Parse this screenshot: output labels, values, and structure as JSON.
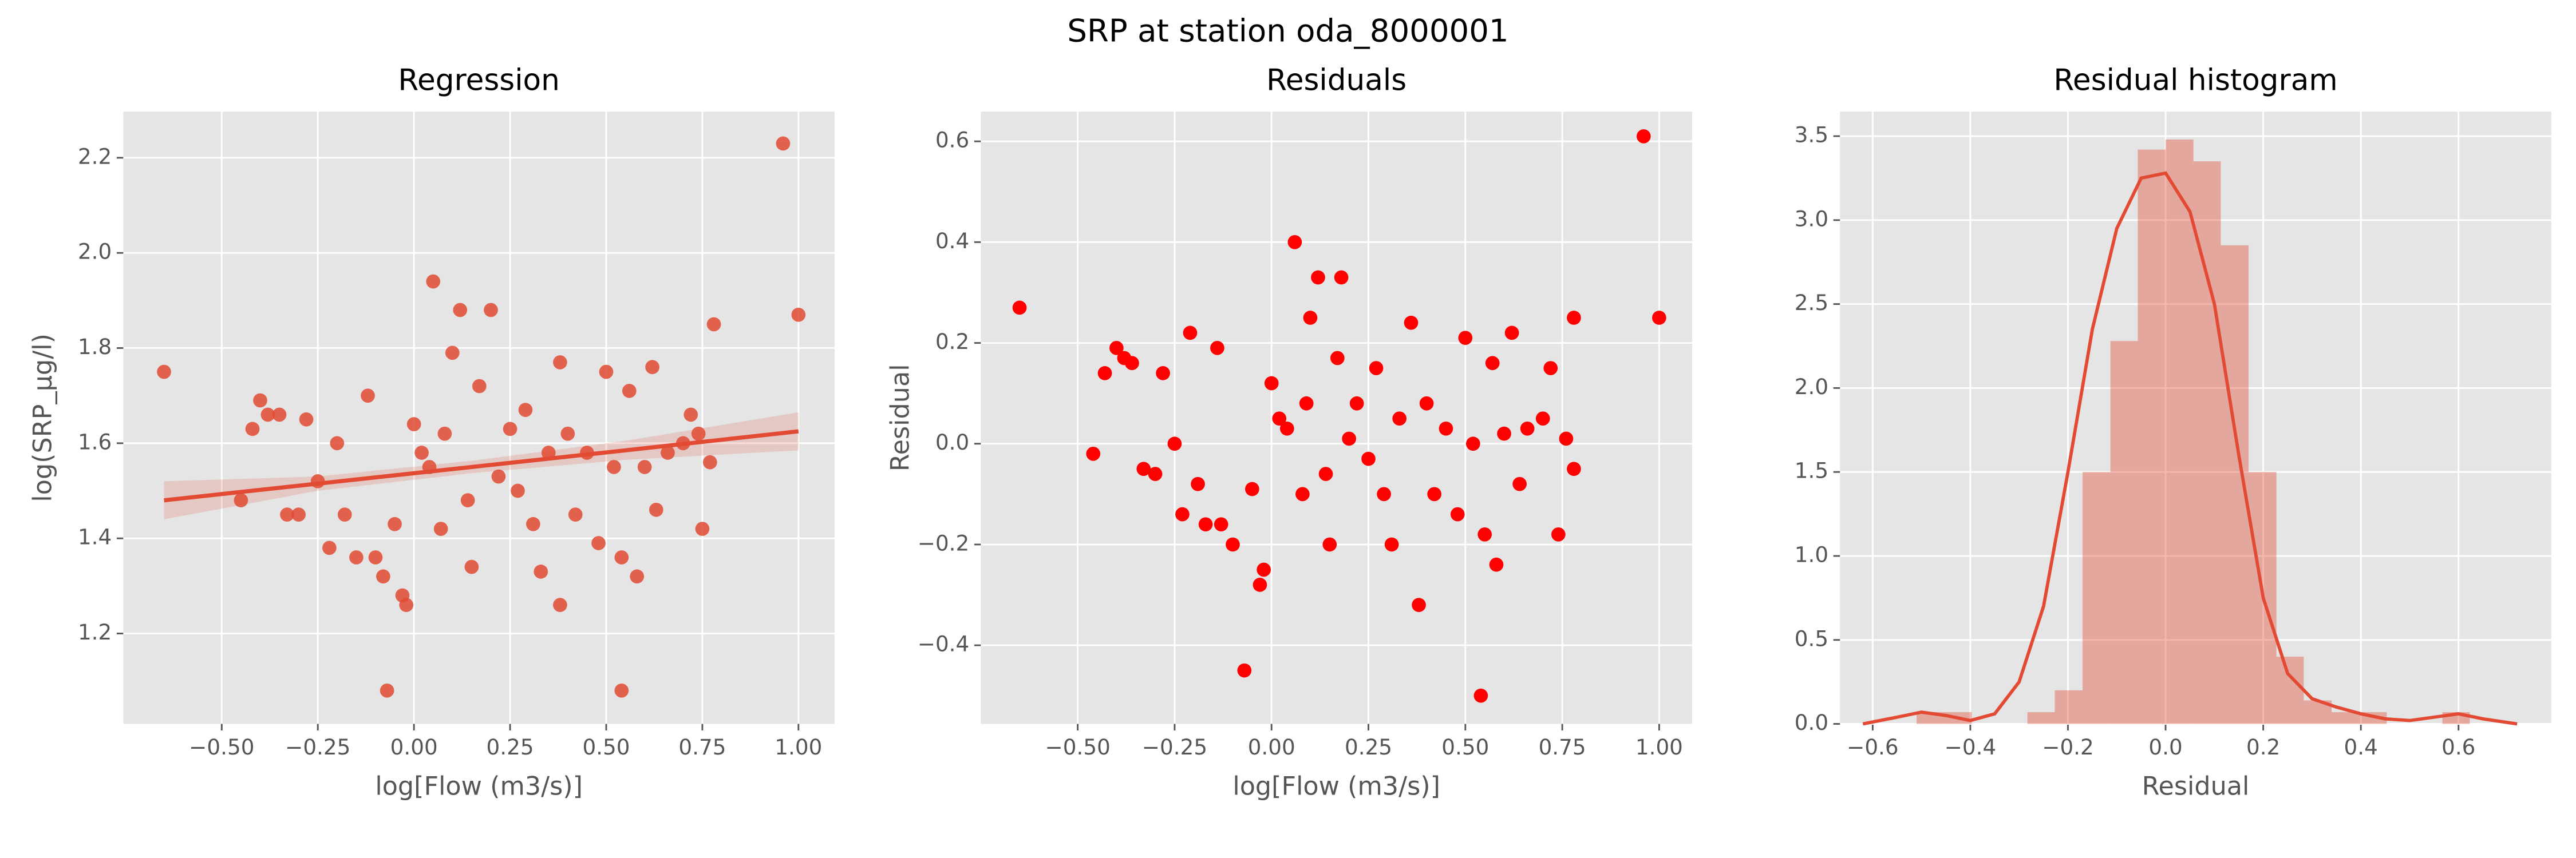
{
  "title": "SRP at station oda_8000001",
  "chart_data": [
    {
      "type": "scatter",
      "title": "Regression",
      "xlabel": "log[Flow (m3/s)]",
      "ylabel": "log(SRP_µg/l)",
      "xlim": [
        -0.756,
        1.094
      ],
      "ylim": [
        1.01,
        2.297
      ],
      "xticks": [
        {
          "value": -0.5,
          "label": "−0.50"
        },
        {
          "value": -0.25,
          "label": "−0.25"
        },
        {
          "value": 0,
          "label": "0.00"
        },
        0.25,
        {
          "value": 0.5,
          "label": "0.50"
        },
        0.75,
        {
          "value": 1,
          "label": "1.00"
        }
      ],
      "yticks": [
        1.2,
        1.4,
        1.6,
        1.8,
        {
          "value": 2,
          "label": "2.0"
        },
        2.2
      ],
      "grid": true,
      "points": {
        "color": "#e24a33",
        "x": [
          -0.65,
          -0.45,
          -0.42,
          -0.4,
          -0.38,
          -0.35,
          -0.33,
          -0.3,
          -0.28,
          -0.25,
          -0.22,
          -0.2,
          -0.18,
          -0.15,
          -0.12,
          -0.1,
          -0.08,
          -0.07,
          -0.05,
          -0.03,
          -0.02,
          0.0,
          0.02,
          0.04,
          0.05,
          0.07,
          0.08,
          0.1,
          0.12,
          0.14,
          0.15,
          0.17,
          0.2,
          0.22,
          0.25,
          0.27,
          0.29,
          0.31,
          0.33,
          0.35,
          0.38,
          0.38,
          0.4,
          0.42,
          0.45,
          0.48,
          0.5,
          0.52,
          0.54,
          0.54,
          0.56,
          0.58,
          0.6,
          0.62,
          0.63,
          0.66,
          0.7,
          0.72,
          0.74,
          0.75,
          0.77,
          0.78,
          0.96,
          1.0
        ],
        "y": [
          1.75,
          1.48,
          1.63,
          1.69,
          1.66,
          1.66,
          1.45,
          1.45,
          1.65,
          1.52,
          1.38,
          1.6,
          1.45,
          1.36,
          1.7,
          1.36,
          1.32,
          1.08,
          1.43,
          1.28,
          1.26,
          1.64,
          1.58,
          1.55,
          1.94,
          1.42,
          1.62,
          1.79,
          1.88,
          1.48,
          1.34,
          1.72,
          1.88,
          1.53,
          1.63,
          1.5,
          1.67,
          1.43,
          1.33,
          1.58,
          1.77,
          1.26,
          1.62,
          1.45,
          1.58,
          1.39,
          1.75,
          1.55,
          1.36,
          1.08,
          1.71,
          1.32,
          1.55,
          1.76,
          1.46,
          1.58,
          1.6,
          1.66,
          1.62,
          1.42,
          1.56,
          1.85,
          2.23,
          1.87
        ]
      },
      "fit": {
        "color": "#e24a33",
        "x": [
          -0.65,
          -0.25,
          0.15,
          0.55,
          1.0
        ],
        "y": [
          1.48,
          1.515,
          1.55,
          1.585,
          1.625
        ]
      },
      "ci": {
        "color": "#e24a33",
        "x": [
          -0.65,
          -0.25,
          0.15,
          0.55,
          1.0
        ],
        "lower": [
          1.44,
          1.5,
          1.537,
          1.565,
          1.585
        ],
        "upper": [
          1.52,
          1.53,
          1.563,
          1.605,
          1.665
        ]
      }
    },
    {
      "type": "scatter",
      "title": "Residuals",
      "xlabel": "log[Flow (m3/s)]",
      "ylabel": "Residual",
      "xlim": [
        -0.75,
        1.085
      ],
      "ylim": [
        -0.556,
        0.659
      ],
      "xticks": [
        {
          "value": -0.5,
          "label": "−0.50"
        },
        {
          "value": -0.25,
          "label": "−0.25"
        },
        {
          "value": 0,
          "label": "0.00"
        },
        0.25,
        {
          "value": 0.5,
          "label": "0.50"
        },
        0.75,
        {
          "value": 1,
          "label": "1.00"
        }
      ],
      "yticks": [
        {
          "value": -0.4,
          "label": "−0.4"
        },
        {
          "value": -0.2,
          "label": "−0.2"
        },
        {
          "value": 0,
          "label": "0.0"
        },
        0.2,
        0.4,
        0.6
      ],
      "grid": true,
      "points": {
        "color": "#ff0000",
        "x": [
          -0.65,
          -0.46,
          -0.43,
          -0.4,
          -0.38,
          -0.36,
          -0.33,
          -0.3,
          -0.28,
          -0.25,
          -0.23,
          -0.21,
          -0.19,
          -0.17,
          -0.14,
          -0.13,
          -0.1,
          -0.07,
          -0.05,
          -0.03,
          -0.02,
          0.0,
          0.02,
          0.04,
          0.06,
          0.08,
          0.09,
          0.1,
          0.12,
          0.14,
          0.15,
          0.17,
          0.18,
          0.2,
          0.22,
          0.25,
          0.27,
          0.29,
          0.31,
          0.33,
          0.36,
          0.38,
          0.4,
          0.42,
          0.45,
          0.48,
          0.5,
          0.52,
          0.54,
          0.55,
          0.57,
          0.58,
          0.6,
          0.62,
          0.64,
          0.66,
          0.7,
          0.72,
          0.74,
          0.76,
          0.78,
          0.78,
          0.96,
          1.0
        ],
        "y": [
          0.27,
          -0.02,
          0.14,
          0.19,
          0.17,
          0.16,
          -0.05,
          -0.06,
          0.14,
          0.0,
          -0.14,
          0.22,
          -0.08,
          -0.16,
          0.19,
          -0.16,
          -0.2,
          -0.45,
          -0.09,
          -0.28,
          -0.25,
          0.12,
          0.05,
          0.03,
          0.4,
          -0.1,
          0.08,
          0.25,
          0.33,
          -0.06,
          -0.2,
          0.17,
          0.33,
          0.01,
          0.08,
          -0.03,
          0.15,
          -0.1,
          -0.2,
          0.05,
          0.24,
          -0.32,
          0.08,
          -0.1,
          0.03,
          -0.14,
          0.21,
          0.0,
          -0.5,
          -0.18,
          0.16,
          -0.24,
          0.02,
          0.22,
          -0.08,
          0.03,
          0.05,
          0.15,
          -0.18,
          0.01,
          -0.05,
          0.25,
          0.61,
          0.25
        ]
      }
    },
    {
      "type": "histogram",
      "title": "Residual histogram",
      "xlabel": "Residual",
      "xlim": [
        -0.667,
        0.79
      ],
      "ylim": [
        0,
        3.646
      ],
      "xticks": [
        {
          "value": -0.6,
          "label": "−0.6"
        },
        {
          "value": -0.4,
          "label": "−0.4"
        },
        {
          "value": -0.2,
          "label": "−0.2"
        },
        {
          "value": 0,
          "label": "0.0"
        },
        0.2,
        0.4,
        0.6
      ],
      "yticks": [
        {
          "value": 0,
          "label": "0.0"
        },
        0.5,
        {
          "value": 1,
          "label": "1.0"
        },
        1.5,
        {
          "value": 2,
          "label": "2.0"
        },
        2.5,
        {
          "value": 3,
          "label": "3.0"
        },
        3.5
      ],
      "grid": true,
      "color": "#e24a33",
      "bins": [
        -0.51,
        -0.453,
        -0.397,
        -0.34,
        -0.283,
        -0.227,
        -0.17,
        -0.113,
        -0.057,
        0,
        0.057,
        0.113,
        0.17,
        0.227,
        0.283,
        0.34,
        0.397,
        0.453,
        0.51,
        0.567,
        0.623,
        0.68
      ],
      "counts": [
        0.07,
        0.07,
        0,
        0,
        0.07,
        0.2,
        1.5,
        2.28,
        3.42,
        3.48,
        3.35,
        2.85,
        1.5,
        0.4,
        0.14,
        0.07,
        0.07,
        0,
        0,
        0.07,
        0
      ],
      "kde": {
        "x": [
          -0.62,
          -0.55,
          -0.5,
          -0.45,
          -0.4,
          -0.35,
          -0.3,
          -0.25,
          -0.2,
          -0.15,
          -0.1,
          -0.05,
          0,
          0.05,
          0.1,
          0.15,
          0.2,
          0.25,
          0.3,
          0.35,
          0.4,
          0.45,
          0.5,
          0.55,
          0.6,
          0.65,
          0.72
        ],
        "y": [
          0,
          0.04,
          0.07,
          0.05,
          0.02,
          0.06,
          0.25,
          0.7,
          1.5,
          2.35,
          2.95,
          3.25,
          3.28,
          3.05,
          2.5,
          1.6,
          0.75,
          0.3,
          0.15,
          0.1,
          0.06,
          0.03,
          0.02,
          0.04,
          0.06,
          0.03,
          0
        ]
      }
    }
  ]
}
